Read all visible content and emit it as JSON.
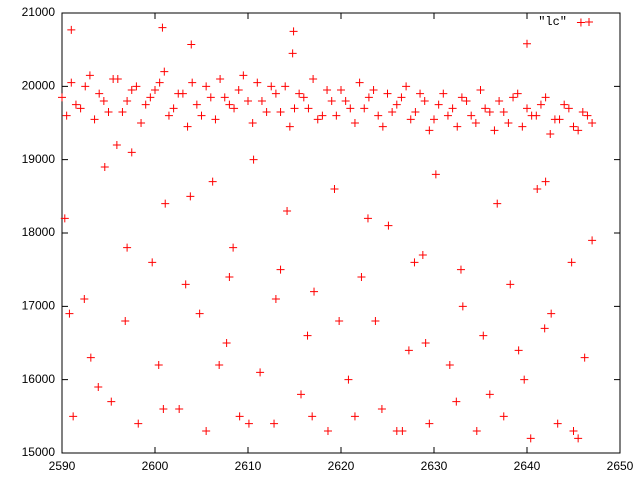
{
  "chart_data": {
    "type": "scatter",
    "legend": "top-right",
    "xlim": [
      2590,
      2650
    ],
    "xticks": [
      2590,
      2600,
      2610,
      2620,
      2630,
      2640,
      2650
    ],
    "ylim": [
      15000,
      21000
    ],
    "yticks": [
      15000,
      16000,
      17000,
      18000,
      19000,
      20000,
      21000
    ],
    "x": [
      2590,
      2591,
      2592,
      2593,
      2594,
      2595,
      2596,
      2597,
      2598,
      2599,
      2600,
      2601,
      2602,
      2603,
      2604,
      2605,
      2606,
      2607,
      2608,
      2609,
      2610,
      2611,
      2612,
      2613,
      2614,
      2615,
      2616,
      2617,
      2618,
      2619,
      2620,
      2621,
      2622,
      2623,
      2624,
      2625,
      2626,
      2627,
      2628,
      2629,
      2630,
      2631,
      2632,
      2633,
      2634,
      2635,
      2636,
      2637,
      2638,
      2639,
      2640,
      2641,
      2642,
      2643,
      2644,
      2645,
      2646,
      2647,
      2590.5,
      2591.5,
      2592.5,
      2593.5,
      2594.5,
      2595.5,
      2596.5,
      2597.5,
      2598.5,
      2599.5,
      2600.5,
      2601.5,
      2602.5,
      2603.5,
      2604.5,
      2605.5,
      2606.5,
      2607.5,
      2608.5,
      2609.5,
      2610.5,
      2611.5,
      2612.5,
      2613.5,
      2614.5,
      2615.5,
      2616.5,
      2617.5,
      2618.5,
      2619.5,
      2620.5,
      2621.5,
      2622.5,
      2623.5,
      2624.5,
      2625.5,
      2626.5,
      2627.5,
      2628.5,
      2629.5,
      2630.5,
      2631.5,
      2632.5,
      2633.5,
      2634.5,
      2635.5,
      2636.5,
      2637.5,
      2638.5,
      2639.5,
      2640.5,
      2641.5,
      2642.5,
      2643.5,
      2644.5,
      2645.5,
      2646.5,
      2590.3,
      2591.2,
      2592.4,
      2593.1,
      2594.6,
      2595.3,
      2596.8,
      2597.5,
      2598.2,
      2599.7,
      2600.4,
      2601.1,
      2602.6,
      2603.3,
      2604.8,
      2605.5,
      2606.2,
      2607.7,
      2608.4,
      2609.1,
      2610.6,
      2611.3,
      2612.8,
      2613.5,
      2614.2,
      2615.7,
      2616.4,
      2617.1,
      2618.6,
      2619.3,
      2620.8,
      2621.5,
      2622.2,
      2623.7,
      2624.4,
      2625.1,
      2626.6,
      2627.3,
      2628.8,
      2629.5,
      2630.2,
      2631.7,
      2632.4,
      2633.1,
      2634.6,
      2635.3,
      2636.8,
      2637.5,
      2638.2,
      2639.7,
      2640.4,
      2641.1,
      2642.6,
      2643.3,
      2644.8,
      2645.5,
      2646.2,
      2647.0,
      2590.8,
      2593.9,
      2597.0,
      2600.9,
      2603.8,
      2606.9,
      2610.1,
      2613.0,
      2616.9,
      2619.8,
      2622.9,
      2626.0,
      2629.1,
      2632.9,
      2636.0,
      2639.1,
      2642.0,
      2645.0,
      2595.9,
      2608.0,
      2627.9,
      2641.9,
      2591.0,
      2600.8,
      2603.9,
      2614.9,
      2614.8,
      2640.0,
      2645.8
    ],
    "series": [
      {
        "name": "\"lc\"",
        "color": "#ff0000",
        "values": [
          19850,
          20050,
          19700,
          20150,
          19900,
          19650,
          20100,
          19800,
          20000,
          19750,
          19950,
          20200,
          19700,
          19900,
          20050,
          19600,
          19850,
          20100,
          19750,
          19950,
          19800,
          20050,
          19650,
          19900,
          20000,
          19700,
          19850,
          20100,
          19600,
          19800,
          19950,
          19700,
          20050,
          19850,
          19600,
          19900,
          19750,
          20000,
          19650,
          19800,
          19550,
          19900,
          19700,
          19850,
          19600,
          19950,
          19650,
          19800,
          19500,
          19900,
          19700,
          19600,
          19850,
          19550,
          19750,
          19450,
          19650,
          19500,
          19600,
          19750,
          20000,
          19550,
          19800,
          20100,
          19650,
          19950,
          19500,
          19850,
          20050,
          19600,
          19900,
          19450,
          19750,
          20000,
          19550,
          19850,
          19700,
          20150,
          19500,
          19800,
          20000,
          19650,
          19450,
          19900,
          19700,
          19550,
          19950,
          19600,
          19800,
          19500,
          19700,
          19950,
          19450,
          19650,
          19850,
          19550,
          19900,
          19400,
          19750,
          19600,
          19450,
          19800,
          19500,
          19700,
          19400,
          19650,
          19850,
          19450,
          19600,
          19750,
          19350,
          19550,
          19700,
          19400,
          19600,
          18200,
          15500,
          17100,
          16300,
          18900,
          15700,
          16800,
          19100,
          15400,
          17600,
          16200,
          18400,
          15600,
          17300,
          16900,
          15300,
          18700,
          16500,
          17800,
          15500,
          19000,
          16100,
          15400,
          17500,
          18300,
          15800,
          16600,
          17200,
          15300,
          18600,
          16000,
          15500,
          17400,
          16800,
          15600,
          18100,
          15300,
          16400,
          17700,
          15400,
          18800,
          16200,
          15700,
          17000,
          15300,
          16600,
          18400,
          15500,
          17300,
          16000,
          15200,
          18600,
          16900,
          15400,
          17600,
          15200,
          16300,
          17900,
          16900,
          15900,
          17800,
          15600,
          18500,
          16200,
          15400,
          17100,
          15500,
          16800,
          18200,
          15300,
          16500,
          17500,
          15800,
          16400,
          18700,
          15300,
          19200,
          17400,
          17600,
          16700,
          20770,
          20800,
          20570,
          20750,
          20450,
          20580,
          20870
        ]
      }
    ]
  }
}
